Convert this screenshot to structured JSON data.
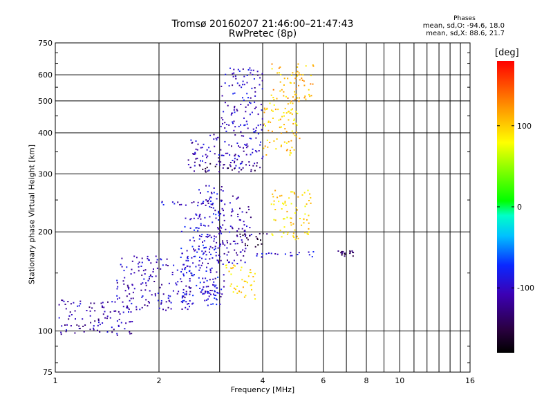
{
  "chart_data": {
    "type": "scatter",
    "title": "Tromsø 20160207 21:46:00–21:47:43",
    "subtitle": "RwPretec (8p)",
    "xlabel": "Frequency [MHz]",
    "ylabel": "Stationary phase Virtual Height [km]",
    "xscale": "log",
    "yscale": "log",
    "xlim": [
      1,
      16
    ],
    "ylim": [
      75,
      750
    ],
    "x_ticks": [
      1,
      2,
      4,
      6,
      8,
      10,
      16
    ],
    "x_tick_labels": [
      "1",
      "2",
      "4",
      "6",
      "8",
      "10",
      "16"
    ],
    "x_minor_ticks": [
      3,
      5,
      7,
      9,
      11,
      12,
      13,
      14,
      15
    ],
    "y_ticks": [
      75,
      100,
      200,
      300,
      400,
      500,
      600,
      750
    ],
    "y_tick_labels": [
      "75",
      "100",
      "200",
      "300",
      "400",
      "500",
      "600",
      "750"
    ],
    "y_minor_ticks": [
      80,
      90,
      150,
      250,
      350,
      450,
      550,
      650,
      700
    ],
    "grid": true,
    "colorbar": {
      "label": "[deg]",
      "range": [
        -180,
        180
      ],
      "ticks": [
        100,
        0,
        -100
      ],
      "tick_labels": [
        "100",
        "0",
        "-100"
      ]
    },
    "phases_box": {
      "title": "Phases",
      "o_line": "mean, sd,O: -94.6, 18.0",
      "x_line": "mean, sd,X:  88.6, 21.7"
    },
    "clusters": [
      {
        "freq_range": [
          1.02,
          1.7
        ],
        "height_range": [
          97,
          125
        ],
        "phase_deg": -110
      },
      {
        "freq_range": [
          1.5,
          2.5
        ],
        "height_range": [
          115,
          170
        ],
        "phase_deg": -105
      },
      {
        "freq_range": [
          2.3,
          3.0
        ],
        "height_range": [
          120,
          230
        ],
        "phase_deg": -90
      },
      {
        "freq_range": [
          2.6,
          3.1
        ],
        "height_range": [
          125,
          280
        ],
        "phase_deg": -100
      },
      {
        "freq_range": [
          1.95,
          2.9
        ],
        "height_range": [
          240,
          250
        ],
        "phase_deg": -100
      },
      {
        "freq_range": [
          3.0,
          3.7
        ],
        "height_range": [
          160,
          260
        ],
        "phase_deg": -110
      },
      {
        "freq_range": [
          3.1,
          3.8
        ],
        "height_range": [
          125,
          160
        ],
        "phase_deg": 95
      },
      {
        "freq_range": [
          3.4,
          4.1
        ],
        "height_range": [
          180,
          200
        ],
        "phase_deg": -150
      },
      {
        "freq_range": [
          3.8,
          5.7
        ],
        "height_range": [
          168,
          175
        ],
        "phase_deg": -95
      },
      {
        "freq_range": [
          4.2,
          5.5
        ],
        "height_range": [
          190,
          270
        ],
        "phase_deg": 95
      },
      {
        "freq_range": [
          6.6,
          7.3
        ],
        "height_range": [
          168,
          178
        ],
        "phase_deg": -140
      },
      {
        "freq_range": [
          2.4,
          4.0
        ],
        "height_range": [
          305,
          400
        ],
        "phase_deg": -105
      },
      {
        "freq_range": [
          2.5,
          3.9
        ],
        "height_range": [
          305,
          330
        ],
        "phase_deg": -140
      },
      {
        "freq_range": [
          3.0,
          4.0
        ],
        "height_range": [
          400,
          640
        ],
        "phase_deg": -100
      },
      {
        "freq_range": [
          4.0,
          5.1
        ],
        "height_range": [
          340,
          520
        ],
        "phase_deg": 100
      },
      {
        "freq_range": [
          4.2,
          5.6
        ],
        "height_range": [
          500,
          650
        ],
        "phase_deg": 110
      }
    ]
  }
}
